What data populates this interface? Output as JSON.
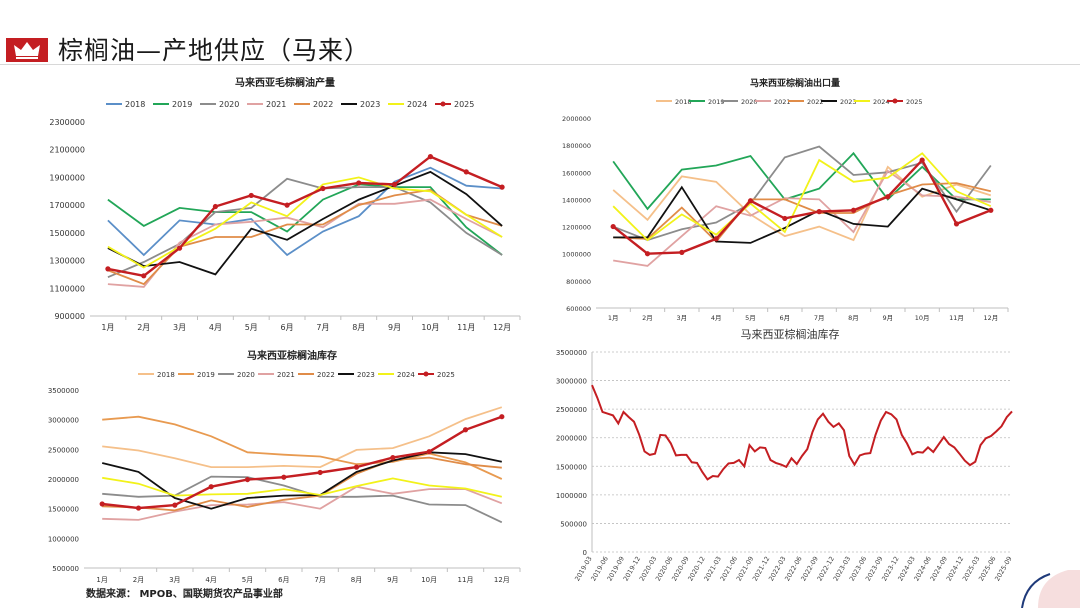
{
  "header": {
    "title": "棕榈油—产地供应（马来）"
  },
  "source": "数据来源： MPOB、国联期货农产品事业部",
  "months": [
    "1月",
    "2月",
    "3月",
    "4月",
    "5月",
    "6月",
    "7月",
    "8月",
    "9月",
    "10月",
    "11月",
    "12月"
  ],
  "colors": {
    "2018": "#5b8fc8",
    "2019": "#22a658",
    "2020": "#8c8c8c",
    "2021": "#e0a2a2",
    "2022": "#e08c48",
    "2023": "#111111",
    "2024": "#f2f21a",
    "2025": "#c41e22",
    "alt2018": "#f5c08a",
    "alt2019": "#e89a50"
  },
  "chart_data": [
    {
      "type": "line",
      "title": "马来西亚毛棕榈油产量",
      "ylim": [
        900000,
        2300000
      ],
      "yticks": [
        "900000",
        "1100000",
        "1300000",
        "1500000",
        "1700000",
        "1900000",
        "2100000",
        "2300000"
      ],
      "series": [
        {
          "name": "2018",
          "values": [
            1590000,
            1340000,
            1590000,
            1560000,
            1600000,
            1340000,
            1510000,
            1620000,
            1870000,
            1970000,
            1840000,
            1820000
          ]
        },
        {
          "name": "2019",
          "values": [
            1740000,
            1550000,
            1680000,
            1650000,
            1650000,
            1510000,
            1740000,
            1850000,
            1830000,
            1830000,
            1540000,
            1340000
          ]
        },
        {
          "name": "2020",
          "values": [
            1180000,
            1290000,
            1420000,
            1650000,
            1680000,
            1890000,
            1820000,
            1830000,
            1830000,
            1720000,
            1500000,
            1340000
          ]
        },
        {
          "name": "2021",
          "values": [
            1130000,
            1110000,
            1430000,
            1560000,
            1580000,
            1610000,
            1540000,
            1710000,
            1710000,
            1740000,
            1600000,
            1470000
          ]
        },
        {
          "name": "2022",
          "values": [
            1230000,
            1130000,
            1400000,
            1470000,
            1470000,
            1560000,
            1560000,
            1700000,
            1770000,
            1810000,
            1630000,
            1550000
          ]
        },
        {
          "name": "2023",
          "values": [
            1390000,
            1260000,
            1290000,
            1200000,
            1530000,
            1450000,
            1600000,
            1740000,
            1840000,
            1940000,
            1780000,
            1550000
          ]
        },
        {
          "name": "2024",
          "values": [
            1400000,
            1250000,
            1400000,
            1530000,
            1720000,
            1620000,
            1850000,
            1900000,
            1820000,
            1800000,
            1630000,
            1470000
          ]
        },
        {
          "name": "2025",
          "values": [
            1240000,
            1190000,
            1390000,
            1690000,
            1770000,
            1700000,
            1820000,
            1860000,
            1850000,
            2050000,
            1940000,
            1830000
          ]
        }
      ]
    },
    {
      "type": "line",
      "title": "马来西亚棕榈油出口量",
      "ylim": [
        600000,
        2000000
      ],
      "yticks": [
        "600000",
        "800000",
        "1000000",
        "1200000",
        "1400000",
        "1600000",
        "1800000",
        "2000000"
      ],
      "series": [
        {
          "name": "2018",
          "values": [
            1470000,
            1250000,
            1570000,
            1530000,
            1290000,
            1130000,
            1200000,
            1100000,
            1640000,
            1420000,
            1510000,
            1430000
          ]
        },
        {
          "name": "2019",
          "values": [
            1680000,
            1330000,
            1620000,
            1650000,
            1720000,
            1400000,
            1480000,
            1740000,
            1400000,
            1640000,
            1400000,
            1400000
          ]
        },
        {
          "name": "2020",
          "values": [
            1200000,
            1100000,
            1180000,
            1230000,
            1370000,
            1710000,
            1790000,
            1580000,
            1600000,
            1670000,
            1310000,
            1650000
          ]
        },
        {
          "name": "2021",
          "values": [
            950000,
            910000,
            1130000,
            1350000,
            1280000,
            1410000,
            1400000,
            1160000,
            1610000,
            1430000,
            1420000,
            1380000
          ]
        },
        {
          "name": "2022",
          "values": [
            1120000,
            1110000,
            1340000,
            1090000,
            1400000,
            1400000,
            1300000,
            1300000,
            1430000,
            1510000,
            1520000,
            1460000
          ]
        },
        {
          "name": "2023",
          "values": [
            1120000,
            1120000,
            1490000,
            1090000,
            1080000,
            1190000,
            1320000,
            1220000,
            1200000,
            1480000,
            1400000,
            1320000
          ]
        },
        {
          "name": "2024",
          "values": [
            1350000,
            1100000,
            1290000,
            1140000,
            1370000,
            1160000,
            1690000,
            1530000,
            1560000,
            1740000,
            1460000,
            1350000
          ]
        },
        {
          "name": "2025",
          "values": [
            1200000,
            1000000,
            1010000,
            1110000,
            1390000,
            1260000,
            1310000,
            1320000,
            1420000,
            1690000,
            1220000,
            1320000
          ]
        }
      ]
    },
    {
      "type": "line",
      "title": "马来西亚棕榈油库存",
      "ylim": [
        500000,
        3500000
      ],
      "yticks": [
        "500000",
        "1000000",
        "1500000",
        "2000000",
        "2500000",
        "3000000",
        "3500000"
      ],
      "series": [
        {
          "name": "2018",
          "values": [
            2550000,
            2480000,
            2350000,
            2200000,
            2200000,
            2220000,
            2200000,
            2490000,
            2520000,
            2720000,
            3010000,
            3210000
          ]
        },
        {
          "name": "2019",
          "values": [
            3000000,
            3050000,
            2920000,
            2720000,
            2450000,
            2410000,
            2380000,
            2250000,
            2290000,
            2430000,
            2280000,
            2000000
          ]
        },
        {
          "name": "2020",
          "values": [
            1750000,
            1700000,
            1720000,
            2040000,
            2030000,
            1890000,
            1700000,
            1700000,
            1720000,
            1570000,
            1560000,
            1270000
          ]
        },
        {
          "name": "2021",
          "values": [
            1330000,
            1310000,
            1450000,
            1560000,
            1570000,
            1610000,
            1500000,
            1870000,
            1750000,
            1830000,
            1830000,
            1590000
          ]
        },
        {
          "name": "2022",
          "values": [
            1540000,
            1520000,
            1470000,
            1640000,
            1530000,
            1650000,
            1720000,
            2090000,
            2320000,
            2360000,
            2250000,
            2190000
          ]
        },
        {
          "name": "2023",
          "values": [
            2270000,
            2120000,
            1680000,
            1500000,
            1680000,
            1720000,
            1730000,
            2120000,
            2310000,
            2450000,
            2420000,
            2290000
          ]
        },
        {
          "name": "2024",
          "values": [
            2020000,
            1920000,
            1720000,
            1740000,
            1750000,
            1830000,
            1730000,
            1880000,
            2010000,
            1890000,
            1840000,
            1700000
          ]
        },
        {
          "name": "2025",
          "values": [
            1580000,
            1510000,
            1560000,
            1870000,
            1990000,
            2030000,
            2110000,
            2200000,
            2360000,
            2460000,
            2830000,
            3050000
          ]
        }
      ]
    },
    {
      "type": "line",
      "title": "马来西亚棕榈油库存",
      "ylim": [
        0,
        3500000
      ],
      "yticks": [
        "0",
        "500000",
        "1000000",
        "1500000",
        "2000000",
        "2500000",
        "3000000",
        "3500000"
      ],
      "xticks": [
        "2019-03",
        "2019-06",
        "2019-09",
        "2019-12",
        "2020-03",
        "2020-06",
        "2020-09",
        "2020-12",
        "2021-03",
        "2021-06",
        "2021-09",
        "2021-12",
        "2022-03",
        "2022-06",
        "2022-09",
        "2022-12",
        "2023-03",
        "2023-06",
        "2023-09",
        "2023-12",
        "2024-03",
        "2024-06",
        "2024-09",
        "2024-12",
        "2025-03",
        "2025-06",
        "2025-09"
      ],
      "series": [
        {
          "name": "库存",
          "values": [
            2920000,
            2700000,
            2450000,
            2420000,
            2390000,
            2250000,
            2450000,
            2360000,
            2280000,
            2050000,
            1760000,
            1700000,
            1720000,
            2050000,
            2040000,
            1900000,
            1690000,
            1700000,
            1700000,
            1570000,
            1560000,
            1400000,
            1270000,
            1330000,
            1320000,
            1450000,
            1550000,
            1560000,
            1610000,
            1500000,
            1870000,
            1760000,
            1830000,
            1820000,
            1610000,
            1560000,
            1530000,
            1490000,
            1640000,
            1540000,
            1680000,
            1800000,
            2100000,
            2320000,
            2420000,
            2280000,
            2190000,
            2250000,
            2130000,
            1680000,
            1530000,
            1690000,
            1720000,
            1730000,
            2050000,
            2300000,
            2450000,
            2410000,
            2320000,
            2050000,
            1900000,
            1710000,
            1750000,
            1740000,
            1830000,
            1750000,
            1880000,
            2010000,
            1890000,
            1830000,
            1720000,
            1600000,
            1520000,
            1580000,
            1870000,
            1990000,
            2030000,
            2110000,
            2200000,
            2360000,
            2460000
          ]
        }
      ]
    }
  ]
}
